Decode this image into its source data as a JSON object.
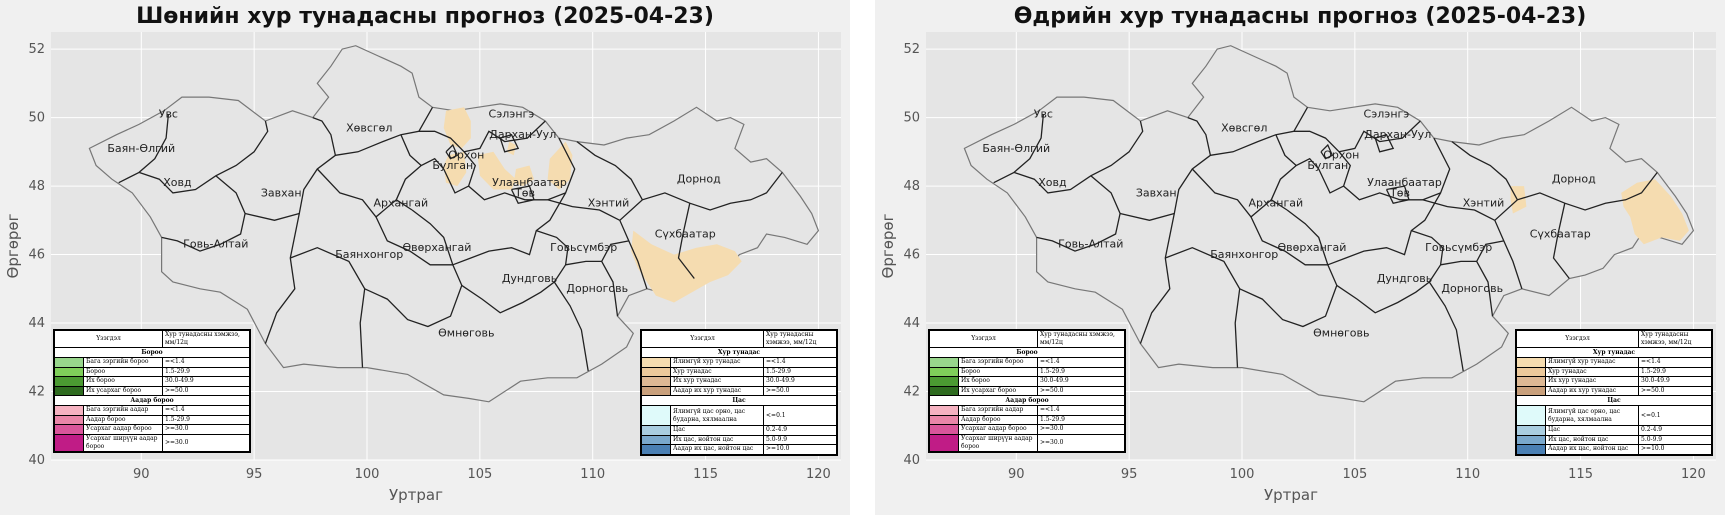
{
  "maps": [
    {
      "title": "Шөнийн хур тунадасны прогноз (2025-04-23)",
      "labels": [
        "Увс",
        "Баян-Өлгий",
        "Ховд",
        "Хөвсгөл",
        "Завхан",
        "Говь-Алтай",
        "Архангай",
        "Баянхонгор",
        "Өвөрхангай",
        "Булган",
        "Орхон",
        "Сэлэнгэ",
        "Дархан-Уул",
        "Улаанбаатар",
        "Төв",
        "Хэнтий",
        "Дорнод",
        "Сүхбаатар",
        "Говьсүмбэр",
        "Дундговь",
        "Дорноговь",
        "Өмнөговь"
      ]
    },
    {
      "title": "Өдрийн хур тунадасны прогноз (2025-04-23)",
      "labels": [
        "Увс",
        "Баян-Өлгий",
        "Ховд",
        "Хөвсгөл",
        "Завхан",
        "Говь-Алтай",
        "Архангай",
        "Баянхонгор",
        "Өвөрхангай",
        "Булган",
        "Орхон",
        "Сэлэнгэ",
        "Дархан-Уул",
        "Улаанбаатар",
        "Төв",
        "Хэнтий",
        "Дорнод",
        "Сүхбаатар",
        "Говьсүмбэр",
        "Дундговь",
        "Дорноговь",
        "Өмнөговь"
      ]
    }
  ],
  "axes": {
    "xlabel": "Уртраг",
    "ylabel": "Өргөрөг",
    "xticks": [
      "90",
      "95",
      "100",
      "105",
      "110",
      "115",
      "120"
    ],
    "yticks": [
      "52",
      "50",
      "48",
      "46",
      "44",
      "42",
      "40"
    ],
    "xlim": [
      86,
      121
    ],
    "ylim": [
      40,
      52.5
    ],
    "grid": true
  },
  "legend_rain": {
    "col1": "Үзэгдэл",
    "col2": "Хур тунадасны хэмжээ, мм/12ц",
    "section1": "Бороо",
    "rows1": [
      {
        "label": "Бага зэргийн бороо",
        "value": "=<1.4",
        "color": "#98d68c"
      },
      {
        "label": "Бороо",
        "value": "1.5-29.9",
        "color": "#7fcf5a"
      },
      {
        "label": "Их бороо",
        "value": "30.0-49.9",
        "color": "#4b9a32"
      },
      {
        "label": "Их усархаг бороо",
        "value": ">=50.0",
        "color": "#2e6b1f"
      }
    ],
    "section2": "Аадар бороо",
    "rows2": [
      {
        "label": "Бага зэргийн аадар",
        "value": "=<1.4",
        "color": "#f5b2c1"
      },
      {
        "label": "Аадар бороо",
        "value": "1.5-29.9",
        "color": "#e986a8"
      },
      {
        "label": "Усархаг аадар бороо",
        "value": ">=30.0",
        "color": "#d9559a"
      },
      {
        "label": "Усархаг ширүүн аадар бороо",
        "value": ">=30.0",
        "color": "#c01c86"
      }
    ]
  },
  "legend_snow": {
    "col1": "Үзэгдэл",
    "col2": "Хур тунадасны хэмжээ, мм/12ц",
    "section1": "Хур тунадас",
    "rows1": [
      {
        "label": "Ялимгүй хур тунадас",
        "value": "=<1.4",
        "color": "#f5dcb0"
      },
      {
        "label": "Хур тунадас",
        "value": "1.5-29.9",
        "color": "#ecc99b"
      },
      {
        "label": "Их хур тунадас",
        "value": "30.0-49.9",
        "color": "#ddb894"
      },
      {
        "label": "Аадар их хур тунадас",
        "value": ">=50.0",
        "color": "#c9a07c"
      }
    ],
    "section2": "Цас",
    "rows2": [
      {
        "label": "Ялимгүй цас орно, цас бударна, хялмаална",
        "value": "<=0.1",
        "color": "#dffafa"
      },
      {
        "label": "Цас",
        "value": "0.2-4.9",
        "color": "#a9cde0"
      },
      {
        "label": "Их цас, нойтон цас",
        "value": "5.0-9.9",
        "color": "#7aa8cc"
      },
      {
        "label": "Аадар их цас, нойтон цас",
        "value": ">=10.0",
        "color": "#4a7fb3"
      }
    ]
  },
  "colors": {
    "plot_bg": "#e5e5e5",
    "grid": "#ffffff",
    "province_fill": "#e5e5e5",
    "precip_fill": "#f5dcb0"
  }
}
